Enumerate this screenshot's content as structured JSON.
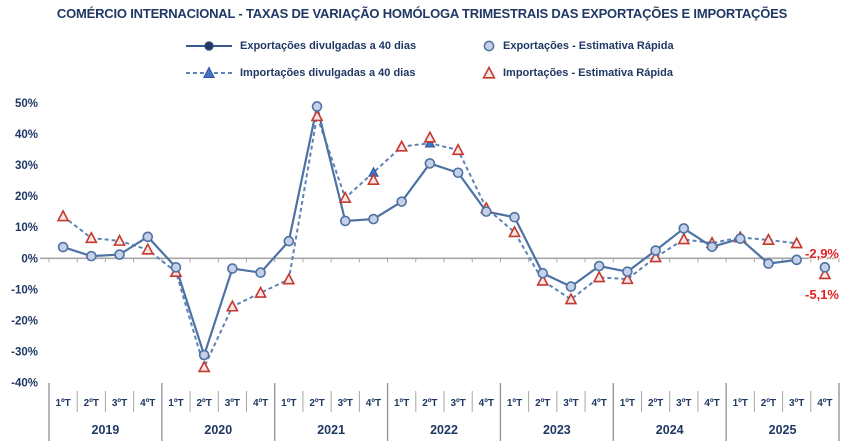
{
  "title": "COMÉRCIO INTERNACIONAL - TAXAS DE VARIAÇÃO HOMÓLOGA TRIMESTRAIS DAS EXPORTAÇÕES E IMPORTAÇÕES",
  "legend": {
    "items": [
      {
        "id": "exports-40d",
        "label": "Exportações divulgadas a 40 dias"
      },
      {
        "id": "exports-flash",
        "label": "Exportações - Estimativa Rápida"
      },
      {
        "id": "imports-40d",
        "label": "Importações divulgadas a 40 dias"
      },
      {
        "id": "imports-flash",
        "label": "Importações - Estimativa Rápida"
      }
    ]
  },
  "annotations": {
    "exports_last": "-2,9%",
    "imports_last": "-5,1%"
  },
  "colors": {
    "navy_text": "#1F3864",
    "solid_line": "#4D72A3",
    "dashed_line": "#5E83B6",
    "circle_flash_fill": "#C6D0E8",
    "circle_flash_stroke": "#4D72A3",
    "circle_40d_fill": "#24375E",
    "triangle_40d_fill": "#4472C4",
    "triangle_40d_stroke": "#2E5597",
    "triangle_flash_fill": "#F7E6E8",
    "triangle_flash_stroke": "#C4382E",
    "axis_gray": "#A6A6A6",
    "separator_gray": "#8C9196",
    "annotation_red": "#E02020"
  },
  "chart_data": {
    "type": "line",
    "x_years": [
      "2019",
      "2020",
      "2021",
      "2022",
      "2023",
      "2024",
      "2025"
    ],
    "quarter_labels": [
      "1ºT",
      "2ºT",
      "3ºT",
      "4ºT"
    ],
    "ylim": [
      -40,
      50
    ],
    "ytick_step": 10,
    "ytick_labels": [
      "50%",
      "40%",
      "30%",
      "20%",
      "10%",
      "0%",
      "-10%",
      "-20%",
      "-30%",
      "-40%"
    ],
    "grid": false,
    "legend_position": "top",
    "series": [
      {
        "name": "Exportações divulgadas a 40 dias",
        "style": "solid-line-circle",
        "values": [
          3.6,
          0.7,
          1.2,
          6.9,
          -2.9,
          -31.1,
          -3.3,
          -4.6,
          5.5,
          48.8,
          12.0,
          12.6,
          18.2,
          30.5,
          27.5,
          15.0,
          13.2,
          -4.8,
          -9.1,
          -2.5,
          -4.3,
          2.5,
          9.6,
          3.7,
          6.3,
          -1.7,
          -0.5,
          null
        ]
      },
      {
        "name": "Exportações - Estimativa Rápida",
        "style": "markers-circle",
        "values": [
          3.6,
          0.7,
          1.2,
          6.9,
          -2.9,
          -31.1,
          -3.3,
          -4.6,
          5.5,
          48.8,
          12.0,
          12.6,
          18.2,
          30.5,
          27.5,
          15.0,
          13.2,
          -4.8,
          -9.1,
          -2.5,
          -4.3,
          2.5,
          9.6,
          3.7,
          6.3,
          -1.7,
          -0.5,
          -2.9
        ]
      },
      {
        "name": "Importações divulgadas a 40 dias",
        "style": "dashed-line-triangle",
        "values": [
          13.5,
          6.5,
          5.6,
          2.8,
          -4.4,
          -35.0,
          -15.5,
          -11.1,
          -6.8,
          45.7,
          19.4,
          27.6,
          35.9,
          37.0,
          34.8,
          16.1,
          8.4,
          -7.2,
          -13.2,
          -6.1,
          -6.7,
          0.3,
          6.1,
          4.9,
          6.7,
          5.9,
          4.8,
          null
        ]
      },
      {
        "name": "Importações - Estimativa Rápida",
        "style": "markers-triangle",
        "values": [
          13.5,
          6.5,
          5.6,
          2.8,
          -4.4,
          -35.0,
          -15.5,
          -11.1,
          -6.8,
          45.7,
          19.4,
          25.2,
          35.9,
          38.8,
          34.8,
          16.1,
          8.4,
          -7.2,
          -13.2,
          -6.1,
          -6.7,
          0.3,
          6.1,
          4.9,
          6.7,
          5.9,
          4.8,
          -5.1
        ]
      }
    ]
  }
}
